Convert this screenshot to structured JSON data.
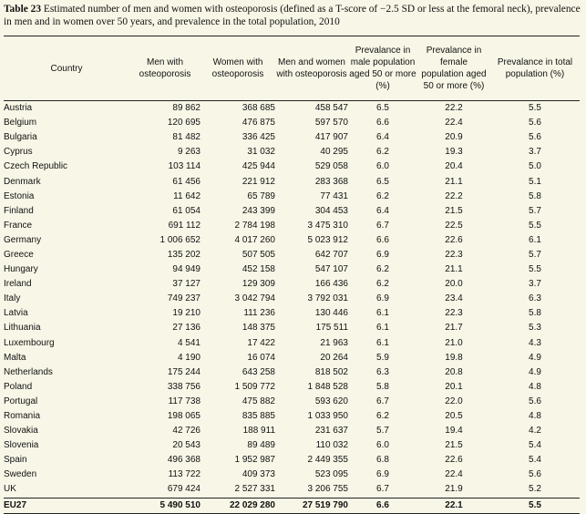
{
  "caption": {
    "label": "Table 23",
    "text": " Estimated number of men and women with osteoporosis (defined as a T-score of −2.5 SD or less at the femoral neck), prevalence in men and in women over 50 years, and prevalence in the total population, 2010"
  },
  "headers": [
    "Country",
    "Men with osteoporosis",
    "Women with osteoporosis",
    "Men and women with osteoporosis",
    "Prevalance in male population aged 50 or more (%)",
    "Prevalance in female population aged 50 or more (%)",
    "Prevalance in total population (%)"
  ],
  "rows": [
    [
      "Austria",
      "89 862",
      "368 685",
      "458 547",
      "6.5",
      "22.2",
      "5.5"
    ],
    [
      "Belgium",
      "120 695",
      "476 875",
      "597 570",
      "6.6",
      "22.4",
      "5.6"
    ],
    [
      "Bulgaria",
      "81 482",
      "336 425",
      "417 907",
      "6.4",
      "20.9",
      "5.6"
    ],
    [
      "Cyprus",
      "9 263",
      "31 032",
      "40 295",
      "6.2",
      "19.3",
      "3.7"
    ],
    [
      "Czech Republic",
      "103 114",
      "425 944",
      "529 058",
      "6.0",
      "20.4",
      "5.0"
    ],
    [
      "Denmark",
      "61 456",
      "221 912",
      "283 368",
      "6.5",
      "21.1",
      "5.1"
    ],
    [
      "Estonia",
      "11 642",
      "65 789",
      "77 431",
      "6.2",
      "22.2",
      "5.8"
    ],
    [
      "Finland",
      "61 054",
      "243 399",
      "304 453",
      "6.4",
      "21.5",
      "5.7"
    ],
    [
      "France",
      "691 112",
      "2 784 198",
      "3 475 310",
      "6.7",
      "22.5",
      "5.5"
    ],
    [
      "Germany",
      "1 006 652",
      "4 017 260",
      "5 023 912",
      "6.6",
      "22.6",
      "6.1"
    ],
    [
      "Greece",
      "135 202",
      "507 505",
      "642 707",
      "6.9",
      "22.3",
      "5.7"
    ],
    [
      "Hungary",
      "94 949",
      "452 158",
      "547 107",
      "6.2",
      "21.1",
      "5.5"
    ],
    [
      "Ireland",
      "37 127",
      "129 309",
      "166 436",
      "6.2",
      "20.0",
      "3.7"
    ],
    [
      "Italy",
      "749 237",
      "3 042 794",
      "3 792 031",
      "6.9",
      "23.4",
      "6.3"
    ],
    [
      "Latvia",
      "19 210",
      "111 236",
      "130 446",
      "6.1",
      "22.3",
      "5.8"
    ],
    [
      "Lithuania",
      "27 136",
      "148 375",
      "175 511",
      "6.1",
      "21.7",
      "5.3"
    ],
    [
      "Luxembourg",
      "4 541",
      "17 422",
      "21 963",
      "6.1",
      "21.0",
      "4.3"
    ],
    [
      "Malta",
      "4 190",
      "16 074",
      "20 264",
      "5.9",
      "19.8",
      "4.9"
    ],
    [
      "Netherlands",
      "175 244",
      "643 258",
      "818 502",
      "6.3",
      "20.8",
      "4.9"
    ],
    [
      "Poland",
      "338 756",
      "1 509 772",
      "1 848 528",
      "5.8",
      "20.1",
      "4.8"
    ],
    [
      "Portugal",
      "117 738",
      "475 882",
      "593 620",
      "6.7",
      "22.0",
      "5.6"
    ],
    [
      "Romania",
      "198 065",
      "835 885",
      "1 033 950",
      "6.2",
      "20.5",
      "4.8"
    ],
    [
      "Slovakia",
      "42 726",
      "188 911",
      "231 637",
      "5.7",
      "19.4",
      "4.2"
    ],
    [
      "Slovenia",
      "20 543",
      "89 489",
      "110 032",
      "6.0",
      "21.5",
      "5.4"
    ],
    [
      "Spain",
      "496 368",
      "1 952 987",
      "2 449 355",
      "6.8",
      "22.6",
      "5.4"
    ],
    [
      "Sweden",
      "113 722",
      "409 373",
      "523 095",
      "6.9",
      "22.4",
      "5.6"
    ],
    [
      "UK",
      "679 424",
      "2 527 331",
      "3 206 755",
      "6.7",
      "21.9",
      "5.2"
    ]
  ],
  "total": [
    "EU27",
    "5 490 510",
    "22 029 280",
    "27 519 790",
    "6.6",
    "22.1",
    "5.5"
  ]
}
